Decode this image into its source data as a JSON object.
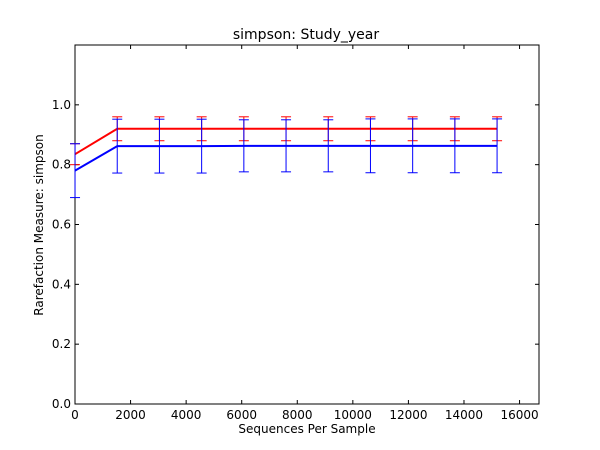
{
  "chart_data": {
    "type": "line",
    "title": "simpson: Study_year",
    "xlabel": "Sequences Per Sample",
    "ylabel": "Rarefaction Measure: simpson",
    "xlim": [
      0,
      16700
    ],
    "ylim": [
      0,
      1.2
    ],
    "x_ticks": [
      0,
      2000,
      4000,
      6000,
      8000,
      10000,
      12000,
      14000,
      16000
    ],
    "y_ticks": [
      0.0,
      0.2,
      0.4,
      0.6,
      0.8,
      1.0
    ],
    "x_tick_labels": [
      "0",
      "2000",
      "4000",
      "6000",
      "8000",
      "10000",
      "12000",
      "14000",
      "16000"
    ],
    "y_tick_labels": [
      "0.0",
      "0.2",
      "0.4",
      "0.6",
      "0.8",
      "1.0"
    ],
    "grid": false,
    "x": [
      1,
      1520,
      3039,
      4558,
      6077,
      7596,
      9115,
      10634,
      12153,
      13672,
      15191
    ],
    "series": [
      {
        "color": "#ff0000",
        "capcolor": "#ff0000",
        "values": [
          0.835,
          0.92,
          0.92,
          0.92,
          0.92,
          0.92,
          0.92,
          0.92,
          0.92,
          0.92,
          0.92
        ],
        "err": [
          0.035,
          0.04,
          0.04,
          0.04,
          0.04,
          0.04,
          0.04,
          0.04,
          0.04,
          0.04,
          0.04
        ]
      },
      {
        "color": "#0000ff",
        "capcolor": "#0000ff",
        "values": [
          0.78,
          0.862,
          0.862,
          0.862,
          0.863,
          0.863,
          0.863,
          0.863,
          0.863,
          0.863,
          0.863
        ],
        "err": [
          0.09,
          0.09,
          0.09,
          0.09,
          0.087,
          0.087,
          0.087,
          0.09,
          0.09,
          0.09,
          0.09
        ]
      }
    ]
  }
}
